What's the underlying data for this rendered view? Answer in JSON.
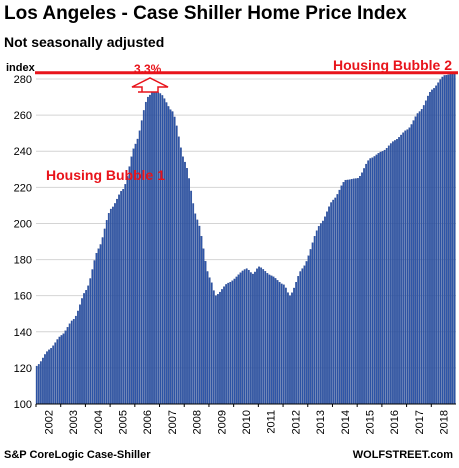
{
  "header": {
    "title": "Los Angeles - Case Shiller Home Price Index",
    "subtitle": "Not seasonally adjusted"
  },
  "footer": {
    "source": "S&P CoreLogic Case-Shiller",
    "watermark": "WOLFSTREET.com"
  },
  "colors": {
    "bar": "#2f56a8",
    "bar_edge": "#1c3c86",
    "annotation": "#e8141b",
    "grid": "#d4d4d4"
  },
  "chart_data": {
    "type": "bar",
    "title": "Los Angeles - Case Shiller Home Price Index",
    "subtitle": "Not seasonally adjusted",
    "ylabel": "index",
    "xlabel": "",
    "ylim": [
      100,
      285
    ],
    "yticks": [
      100,
      120,
      140,
      160,
      180,
      200,
      220,
      240,
      260,
      280
    ],
    "xlim": [
      "2002-01",
      "2018-12"
    ],
    "xticks": [
      "2002",
      "2003",
      "2004",
      "2005",
      "2006",
      "2007",
      "2008",
      "2009",
      "2010",
      "2011",
      "2012",
      "2013",
      "2014",
      "2015",
      "2016",
      "2017",
      "2018"
    ],
    "grid": "horizontal",
    "frequency": "monthly",
    "keypoints": [
      [
        "2002-01",
        121
      ],
      [
        "2002-07",
        130
      ],
      [
        "2003-01",
        138
      ],
      [
        "2003-07",
        147
      ],
      [
        "2004-01",
        163
      ],
      [
        "2004-07",
        186
      ],
      [
        "2005-01",
        208
      ],
      [
        "2005-07",
        219
      ],
      [
        "2006-01",
        244
      ],
      [
        "2006-07",
        270
      ],
      [
        "2006-10",
        274
      ],
      [
        "2007-01",
        272
      ],
      [
        "2007-07",
        262
      ],
      [
        "2008-01",
        234
      ],
      [
        "2008-07",
        202
      ],
      [
        "2009-01",
        170
      ],
      [
        "2009-04",
        160
      ],
      [
        "2009-10",
        167
      ],
      [
        "2010-07",
        175
      ],
      [
        "2010-10",
        172
      ],
      [
        "2011-01",
        176
      ],
      [
        "2011-07",
        171
      ],
      [
        "2012-01",
        166
      ],
      [
        "2012-04",
        160
      ],
      [
        "2012-10",
        175
      ],
      [
        "2013-07",
        200
      ],
      [
        "2014-01",
        213
      ],
      [
        "2014-07",
        224
      ],
      [
        "2015-01",
        225
      ],
      [
        "2015-07",
        236
      ],
      [
        "2016-01",
        240
      ],
      [
        "2016-07",
        246
      ],
      [
        "2017-01",
        252
      ],
      [
        "2017-07",
        262
      ],
      [
        "2018-01",
        274
      ],
      [
        "2018-07",
        282
      ],
      [
        "2018-12",
        283
      ]
    ],
    "annotations": [
      {
        "text": "Housing Bubble 1",
        "anchor": "2006-07"
      },
      {
        "text": "Housing Bubble 2",
        "anchor": "2018-07"
      },
      {
        "text": "3.3%",
        "anchor": "2006-10"
      }
    ],
    "reference_line": {
      "y": 283.5,
      "label": "Housing Bubble 2"
    }
  }
}
